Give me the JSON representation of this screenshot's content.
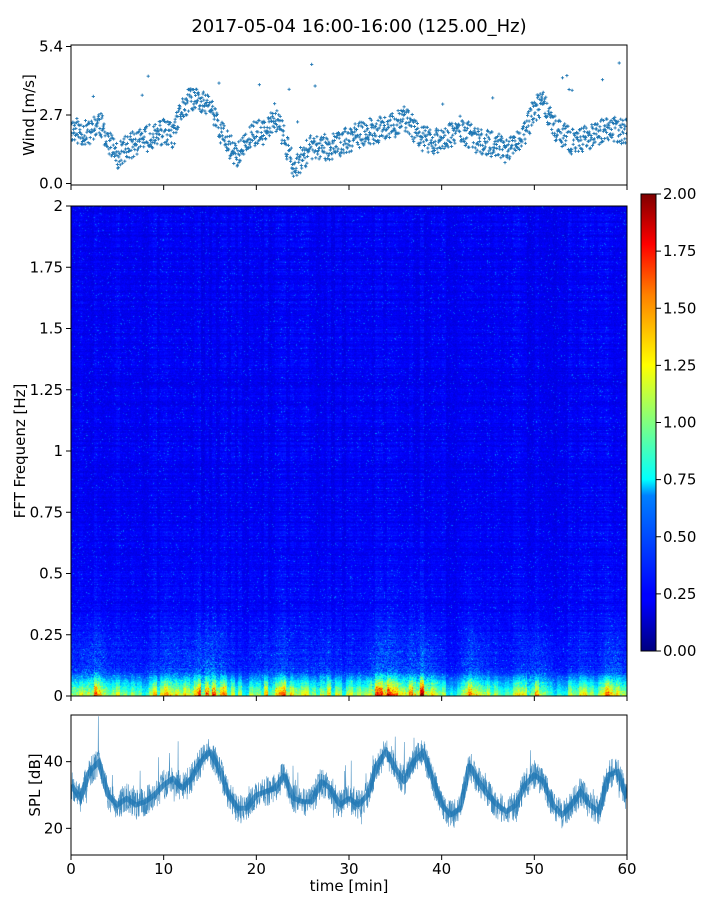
{
  "figure": {
    "title": "2017-05-04 16:00-16:00 (125.00_Hz)"
  },
  "chart_data": [
    {
      "type": "scatter",
      "panel": "wind",
      "ylabel": "Wind [m/s]",
      "xlabel": "",
      "xlim": [
        0,
        60
      ],
      "ylim": [
        0.0,
        5.4
      ],
      "yticks": [
        "0.0",
        "2.7",
        "5.4"
      ],
      "color": "#1f77b4",
      "marker": "small plus",
      "approx_series": {
        "x": [
          0,
          2,
          3,
          5,
          6,
          8,
          10,
          11,
          12,
          13,
          15,
          16,
          17,
          18,
          20,
          21,
          22,
          23,
          24,
          26,
          28,
          30,
          32,
          34,
          36,
          38,
          40,
          42,
          44,
          46,
          47,
          49,
          50,
          51,
          52,
          54,
          56,
          58,
          60
        ],
        "y": [
          2.1,
          1.9,
          2.4,
          1.0,
          1.4,
          1.7,
          2.0,
          1.8,
          2.9,
          3.3,
          3.0,
          2.1,
          1.5,
          1.1,
          2.0,
          1.9,
          2.6,
          1.8,
          0.6,
          1.4,
          1.4,
          1.7,
          2.0,
          2.1,
          2.5,
          1.7,
          1.6,
          2.1,
          1.6,
          1.5,
          1.2,
          1.9,
          2.9,
          3.1,
          2.2,
          1.6,
          1.8,
          2.1,
          2.0
        ]
      }
    },
    {
      "type": "heatmap",
      "panel": "spectrogram",
      "ylabel": "FFT Frequenz [Hz]",
      "xlabel": "",
      "xlim": [
        0,
        60
      ],
      "ylim": [
        0,
        2
      ],
      "yticks": [
        "0",
        "0.25",
        "0.5",
        "0.75",
        "1",
        "1.25",
        "1.5",
        "1.75",
        "2"
      ],
      "colormap": "jet",
      "colorbar": {
        "range": [
          0.0,
          2.0
        ],
        "ticks": [
          "0.00",
          "0.25",
          "0.50",
          "0.75",
          "1.00",
          "1.25",
          "1.50",
          "1.75",
          "2.00"
        ]
      },
      "description_values": {
        "background_level": 0.2,
        "low_frequency_band_hz": [
          0,
          0.1
        ],
        "low_frequency_level": 1.6
      }
    },
    {
      "type": "line",
      "panel": "spl",
      "ylabel": "SPL [dB]",
      "xlabel": "time [min]",
      "xlim": [
        0,
        60
      ],
      "ylim": [
        12,
        54
      ],
      "xticks": [
        "0",
        "10",
        "20",
        "30",
        "40",
        "50",
        "60"
      ],
      "yticks": [
        "20",
        "40"
      ],
      "color": "#1f77b4",
      "approx_series": {
        "x": [
          0,
          1,
          2,
          3,
          4,
          5,
          6,
          7,
          8,
          9,
          10,
          11,
          12,
          13,
          14,
          15,
          16,
          17,
          18,
          19,
          20,
          21,
          22,
          23,
          24,
          25,
          26,
          27,
          28,
          29,
          30,
          31,
          32,
          33,
          34,
          35,
          36,
          37,
          38,
          39,
          40,
          41,
          42,
          43,
          44,
          45,
          46,
          47,
          48,
          49,
          50,
          51,
          52,
          53,
          54,
          55,
          56,
          57,
          58,
          59,
          60
        ],
        "y": [
          33,
          29,
          37,
          40,
          30,
          27,
          29,
          27,
          28,
          30,
          33,
          35,
          32,
          35,
          40,
          43,
          38,
          30,
          26,
          26,
          30,
          31,
          32,
          36,
          29,
          28,
          28,
          34,
          32,
          27,
          29,
          27,
          30,
          39,
          43,
          38,
          34,
          40,
          43,
          35,
          27,
          24,
          26,
          39,
          34,
          30,
          27,
          25,
          27,
          33,
          36,
          34,
          27,
          24,
          27,
          31,
          27,
          25,
          36,
          37,
          29
        ]
      }
    }
  ]
}
